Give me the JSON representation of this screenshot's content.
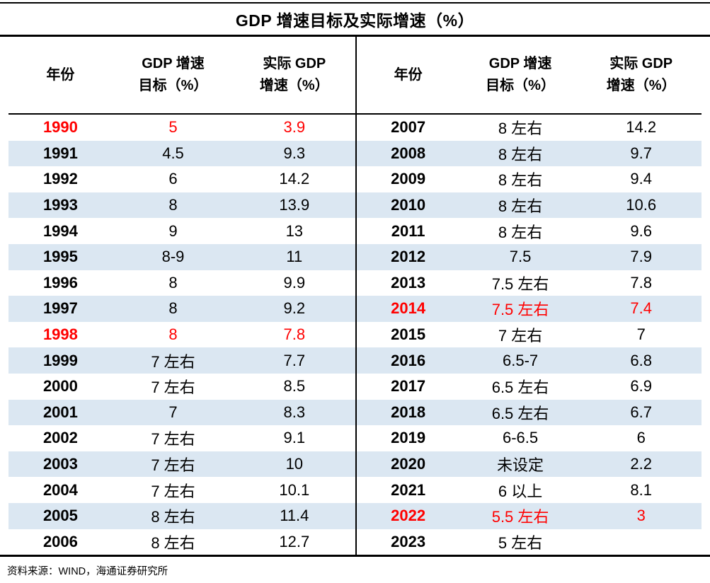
{
  "chart_data": {
    "type": "table",
    "title": "GDP 增速目标及实际增速（%）",
    "columns": {
      "year": "年份",
      "target_line1": "GDP 增速",
      "target_line2": "目标（%）",
      "actual_line1": "实际 GDP",
      "actual_line2": "增速（%）"
    },
    "left_rows": [
      {
        "year": "1990",
        "target": "5",
        "actual": "3.9",
        "highlight": true
      },
      {
        "year": "1991",
        "target": "4.5",
        "actual": "9.3",
        "highlight": false
      },
      {
        "year": "1992",
        "target": "6",
        "actual": "14.2",
        "highlight": false
      },
      {
        "year": "1993",
        "target": "8",
        "actual": "13.9",
        "highlight": false
      },
      {
        "year": "1994",
        "target": "9",
        "actual": "13",
        "highlight": false
      },
      {
        "year": "1995",
        "target": "8-9",
        "actual": "11",
        "highlight": false
      },
      {
        "year": "1996",
        "target": "8",
        "actual": "9.9",
        "highlight": false
      },
      {
        "year": "1997",
        "target": "8",
        "actual": "9.2",
        "highlight": false
      },
      {
        "year": "1998",
        "target": "8",
        "actual": "7.8",
        "highlight": true
      },
      {
        "year": "1999",
        "target": "7 左右",
        "actual": "7.7",
        "highlight": false
      },
      {
        "year": "2000",
        "target": "7 左右",
        "actual": "8.5",
        "highlight": false
      },
      {
        "year": "2001",
        "target": "7",
        "actual": "8.3",
        "highlight": false
      },
      {
        "year": "2002",
        "target": "7 左右",
        "actual": "9.1",
        "highlight": false
      },
      {
        "year": "2003",
        "target": "7 左右",
        "actual": "10",
        "highlight": false
      },
      {
        "year": "2004",
        "target": "7 左右",
        "actual": "10.1",
        "highlight": false
      },
      {
        "year": "2005",
        "target": "8 左右",
        "actual": "11.4",
        "highlight": false
      },
      {
        "year": "2006",
        "target": "8 左右",
        "actual": "12.7",
        "highlight": false
      }
    ],
    "right_rows": [
      {
        "year": "2007",
        "target": "8 左右",
        "actual": "14.2",
        "highlight": false
      },
      {
        "year": "2008",
        "target": "8 左右",
        "actual": "9.7",
        "highlight": false
      },
      {
        "year": "2009",
        "target": "8 左右",
        "actual": "9.4",
        "highlight": false
      },
      {
        "year": "2010",
        "target": "8 左右",
        "actual": "10.6",
        "highlight": false
      },
      {
        "year": "2011",
        "target": "8 左右",
        "actual": "9.6",
        "highlight": false
      },
      {
        "year": "2012",
        "target": "7.5",
        "actual": "7.9",
        "highlight": false
      },
      {
        "year": "2013",
        "target": "7.5 左右",
        "actual": "7.8",
        "highlight": false
      },
      {
        "year": "2014",
        "target": "7.5 左右",
        "actual": "7.4",
        "highlight": true
      },
      {
        "year": "2015",
        "target": "7 左右",
        "actual": "7",
        "highlight": false
      },
      {
        "year": "2016",
        "target": "6.5-7",
        "actual": "6.8",
        "highlight": false
      },
      {
        "year": "2017",
        "target": "6.5 左右",
        "actual": "6.9",
        "highlight": false
      },
      {
        "year": "2018",
        "target": "6.5 左右",
        "actual": "6.7",
        "highlight": false
      },
      {
        "year": "2019",
        "target": "6-6.5",
        "actual": "6",
        "highlight": false
      },
      {
        "year": "2020",
        "target": "未设定",
        "actual": "2.2",
        "highlight": false
      },
      {
        "year": "2021",
        "target": "6 以上",
        "actual": "8.1",
        "highlight": false
      },
      {
        "year": "2022",
        "target": "5.5 左右",
        "actual": "3",
        "highlight": true
      },
      {
        "year": "2023",
        "target": "5 左右",
        "actual": "",
        "highlight": false
      }
    ],
    "source_note": "资料来源：WIND，海通证券研究所",
    "colors": {
      "highlight_red": "#FF0000",
      "band_blue": "#DBE7F2",
      "line_black": "#000000"
    },
    "layout": {
      "banding": "alternate-rows",
      "halves": [
        "1990-2006",
        "2007-2023"
      ],
      "grid": "horizontal rules top/bottom, vertical center divider"
    }
  }
}
